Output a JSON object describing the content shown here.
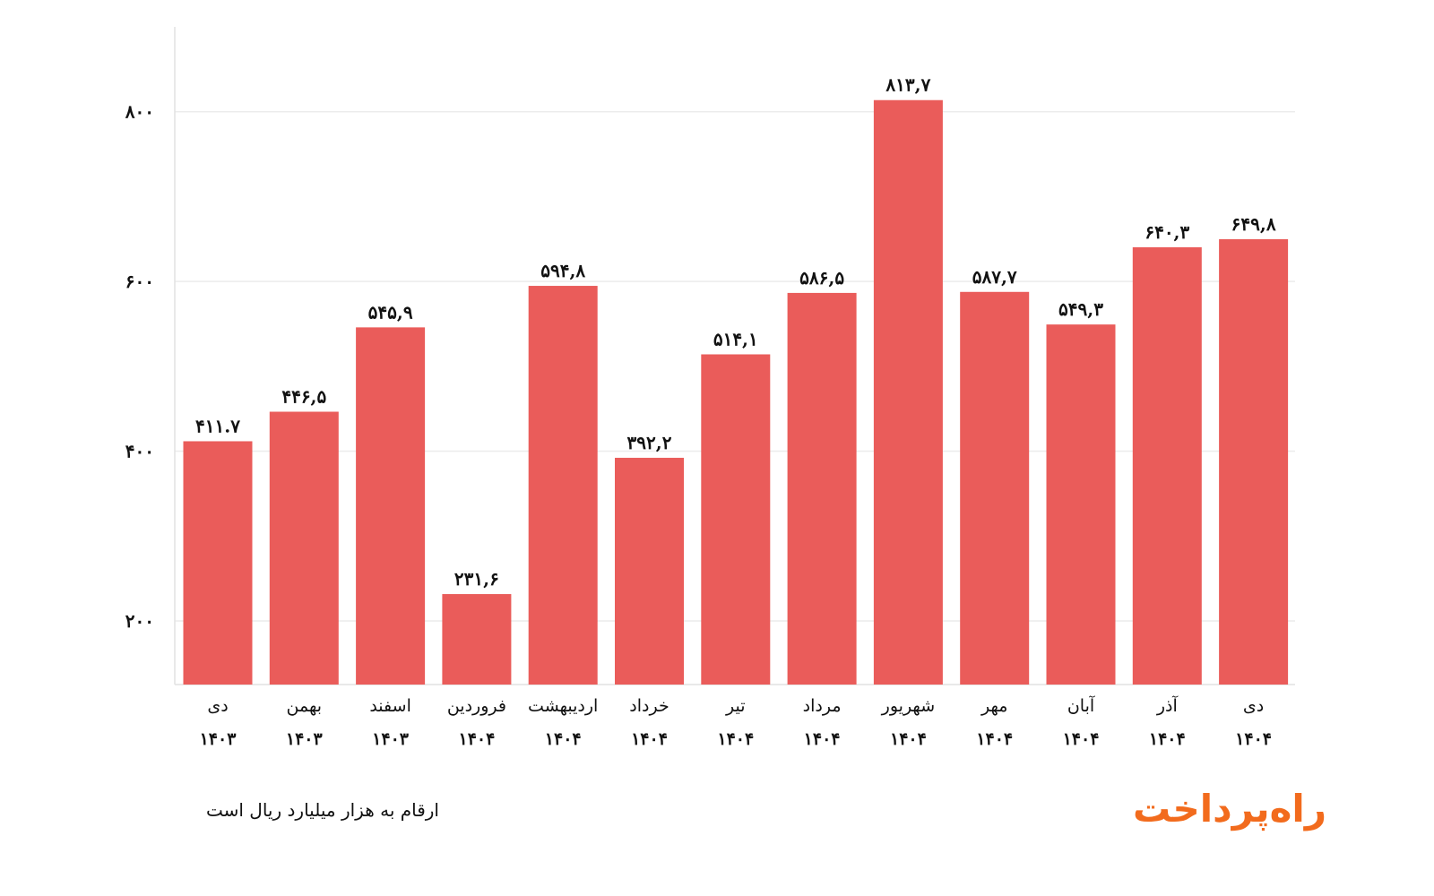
{
  "chart_data": {
    "type": "bar",
    "title": "",
    "xlabel": "",
    "ylabel": "",
    "ylim": [
      125,
      900
    ],
    "yticks": [
      200,
      400,
      600,
      800
    ],
    "ytick_labels": [
      "۲۰۰",
      "۴۰۰",
      "۶۰۰",
      "۸۰۰"
    ],
    "grid": true,
    "bar_color": "#ea5c5a",
    "categories": [
      {
        "month": "دی",
        "year": "۱۴۰۳"
      },
      {
        "month": "بهمن",
        "year": "۱۴۰۳"
      },
      {
        "month": "اسفند",
        "year": "۱۴۰۳"
      },
      {
        "month": "فروردین",
        "year": "۱۴۰۴"
      },
      {
        "month": "اردیبهشت",
        "year": "۱۴۰۴"
      },
      {
        "month": "خرداد",
        "year": "۱۴۰۴"
      },
      {
        "month": "تیر",
        "year": "۱۴۰۴"
      },
      {
        "month": "مرداد",
        "year": "۱۴۰۴"
      },
      {
        "month": "شهریور",
        "year": "۱۴۰۴"
      },
      {
        "month": "مهر",
        "year": "۱۴۰۴"
      },
      {
        "month": "آبان",
        "year": "۱۴۰۴"
      },
      {
        "month": "آذر",
        "year": "۱۴۰۴"
      },
      {
        "month": "دی",
        "year": "۱۴۰۴"
      }
    ],
    "values": [
      411.7,
      446.5,
      545.9,
      231.6,
      594.8,
      392.2,
      514.1,
      586.5,
      813.7,
      587.7,
      549.3,
      640.3,
      649.8
    ],
    "value_labels": [
      "۴۱۱.۷",
      "۴۴۶,۵",
      "۵۴۵,۹",
      "۲۳۱,۶",
      "۵۹۴,۸",
      "۳۹۲,۲",
      "۵۱۴,۱",
      "۵۸۶,۵",
      "۸۱۳,۷",
      "۵۸۷,۷",
      "۵۴۹,۳",
      "۶۴۰,۳",
      "۶۴۹,۸"
    ]
  },
  "footnote": "ارقام به هزار میلیارد ریال است",
  "brand": {
    "name": "راه‌پرداخت",
    "color": "#f26b1d"
  }
}
